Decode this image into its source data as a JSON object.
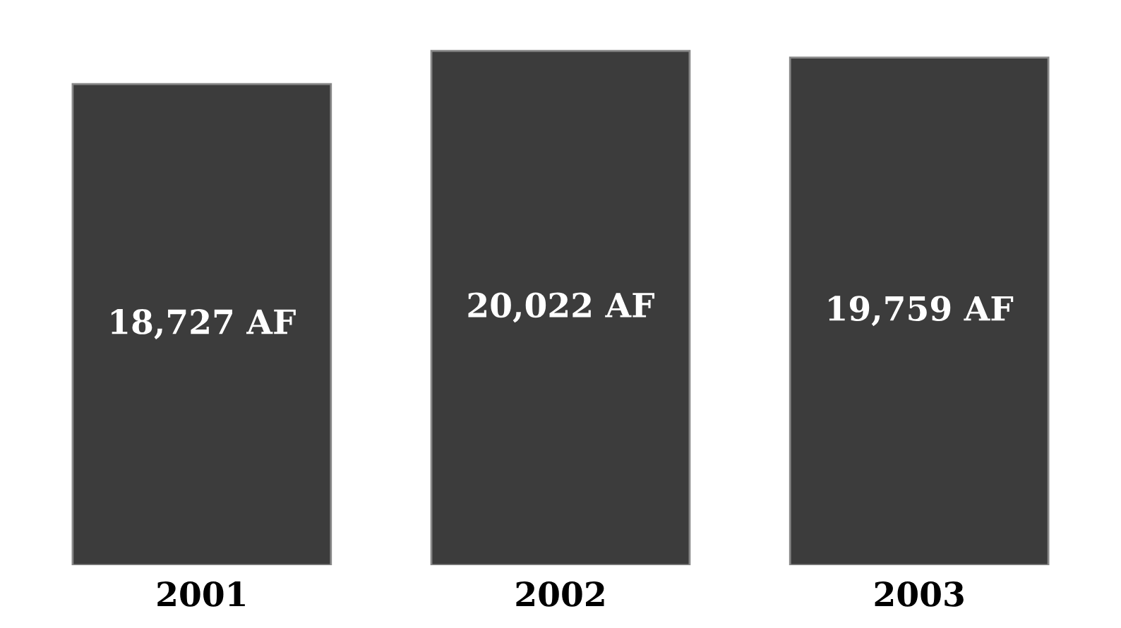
{
  "chart_data": {
    "type": "bar",
    "categories": [
      "2001",
      "2002",
      "2003"
    ],
    "values": [
      18727,
      20022,
      19759
    ],
    "value_labels": [
      "18,727 AF",
      "20,022 AF",
      "19,759 AF"
    ],
    "color": "#3c3c3c"
  }
}
